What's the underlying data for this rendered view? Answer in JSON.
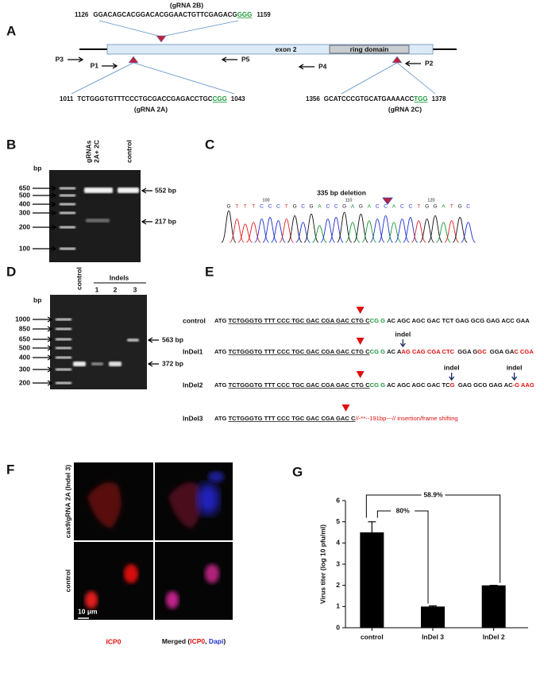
{
  "panel_labels": [
    "A",
    "B",
    "C",
    "D",
    "E",
    "F",
    "G"
  ],
  "panel_a": {
    "grna_2b": {
      "name": "(gRNA 2B)",
      "start": "1126",
      "sequence": "GGACAGCACGGACACGGAACTGTTCGAGACG",
      "pam": "GGG",
      "end": "1159"
    },
    "grna_2a": {
      "name": "(gRNA 2A)",
      "start": "1011",
      "sequence": "TCTGGGTGTTTCCCTGCGACCGAGACCTGC",
      "pam": "CGG",
      "end": "1043"
    },
    "grna_2c": {
      "name": "(gRNA 2C)",
      "start": "1356",
      "sequence": "GCATCCCGTGCATGAAAACC",
      "pam": "TGG",
      "end": "1378"
    },
    "exon": "exon 2",
    "domain": "ring domain",
    "primers": {
      "p3": "P3",
      "p1": "P1",
      "p5": "P5",
      "p4": "P4",
      "p2": "P2"
    }
  },
  "panel_b": {
    "unit": "bp",
    "ladder": [
      "650",
      "500",
      "400",
      "300",
      "200",
      "100"
    ],
    "lane_1": [
      "gRNAs",
      "2A+ 2C"
    ],
    "lane_2": "control",
    "bands": [
      "552 bp",
      "217 bp"
    ]
  },
  "panel_c": {
    "annotation": "335 bp deletion",
    "positions": [
      "100",
      "110",
      "120"
    ],
    "bases": [
      "G",
      "T",
      "T",
      "T",
      "C",
      "C",
      "C",
      "T",
      "G",
      "C",
      "G",
      "A",
      "C",
      "C",
      "G",
      "A",
      "G",
      "A",
      "C",
      "C",
      "A",
      "C",
      "C",
      "T",
      "G",
      "G",
      "A",
      "T",
      "G",
      "C"
    ]
  },
  "panel_d": {
    "unit": "bp",
    "group": "Indels",
    "ladder": [
      "1000",
      "850",
      "650",
      "500",
      "400",
      "300",
      "200"
    ],
    "lanes": [
      "control",
      "1",
      "2",
      "3"
    ],
    "bands": [
      "563 bp",
      "372 bp"
    ]
  },
  "panel_e": {
    "rows": [
      {
        "name": "control",
        "segments": [
          {
            "text": "ATG",
            "style": "plain"
          },
          {
            "text": "TCTGGGTG TTT CCC TGC GAC CGA GAC CTG C",
            "style": "underline"
          },
          {
            "text": "CG G",
            "style": "green"
          },
          {
            "text": "AC AGC AGC GAC TCT GAG GCG GAG ACC GAA",
            "style": "plain"
          }
        ]
      },
      {
        "name": "InDel1",
        "indels": [
          "indel"
        ],
        "segments": [
          {
            "text": "ATG",
            "style": "plain"
          },
          {
            "text": "TCTGGGTG TTT CCC TGC GAC CGA GAC CTG C",
            "style": "underline"
          },
          {
            "text": "CG G",
            "style": "green"
          },
          {
            "text": "AC A",
            "style": "plain"
          },
          {
            "text": "AG CAG CGA CTC",
            "style": "red"
          },
          {
            "text": " GGA G",
            "style": "plain"
          },
          {
            "text": "GC",
            "style": "red"
          },
          {
            "text": " GGA GA",
            "style": "plain"
          },
          {
            "text": "C CGA",
            "style": "red"
          }
        ]
      },
      {
        "name": "InDel2",
        "indels": [
          "indel",
          "indel"
        ],
        "segments": [
          {
            "text": "ATG",
            "style": "plain"
          },
          {
            "text": "TCTGGGTG TTT CCC TGC GAC CGA GAC CTG C",
            "style": "underline"
          },
          {
            "text": "CG G",
            "style": "green"
          },
          {
            "text": "AC AGC AGC GAC TC",
            "style": "plain"
          },
          {
            "text": "G",
            "style": "red"
          },
          {
            "text": " GAG GCG GAG AC",
            "style": "plain"
          },
          {
            "text": "-G AAG",
            "style": "red"
          }
        ]
      },
      {
        "name": "InDel3",
        "segments": [
          {
            "text": "ATG",
            "style": "plain"
          },
          {
            "text": "TCTGGGTG TTT CCC TGC GAC CGA GAC C",
            "style": "underline"
          },
          {
            "text": "//-**--191bp---// insertion/frame shifting",
            "style": "red"
          }
        ]
      }
    ]
  },
  "panel_f": {
    "row_labels": [
      "cas9/gRNA 2A (Indel 3)",
      "control"
    ],
    "scale": "10 μm",
    "left_caption": "ICP0",
    "right_caption": [
      "Merged (",
      "ICP0",
      ", ",
      "Dapi",
      ")"
    ]
  },
  "chart_data": {
    "type": "bar",
    "y_label": "Virus titer (log 10 pfu/ml)",
    "categories": [
      "control",
      "InDel 3",
      "InDel 2"
    ],
    "values": [
      4.5,
      1,
      2
    ],
    "errors": [
      0.5,
      0.03,
      0
    ],
    "annotations": [
      "80%",
      "58.9%"
    ],
    "ylim": [
      0,
      6
    ],
    "yticks": [
      0,
      1,
      2,
      3,
      4,
      5,
      6
    ],
    "color": "#000000"
  }
}
